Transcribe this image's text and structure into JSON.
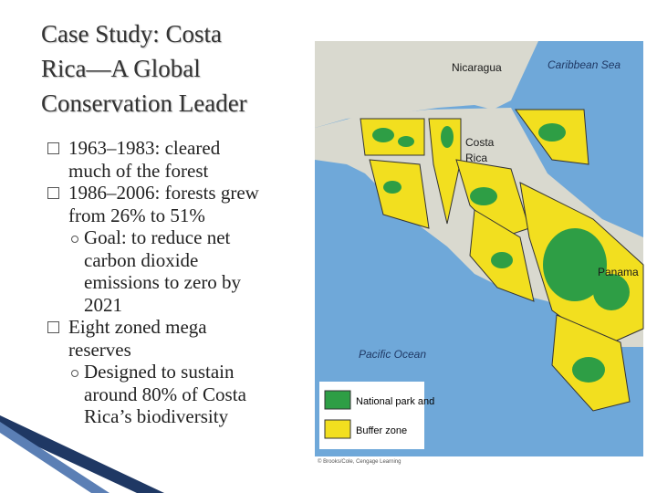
{
  "title": {
    "lines": [
      "Case Study: Costa",
      "Rica—A Global",
      "Conservation Leader"
    ]
  },
  "bullets": [
    {
      "level": 1,
      "lines": [
        "1963–1983: cleared",
        "much of the forest"
      ]
    },
    {
      "level": 1,
      "lines": [
        "1986–2006: forests grew",
        "from 26% to 51%"
      ]
    },
    {
      "level": 2,
      "lines": [
        "Goal: to reduce net",
        "carbon dioxide",
        "emissions to zero by",
        "2021"
      ]
    },
    {
      "level": 1,
      "lines": [
        "Eight zoned mega",
        "reserves"
      ]
    },
    {
      "level": 2,
      "lines": [
        "Designed to sustain",
        "around 80% of Costa",
        "Rica’s biodiversity"
      ]
    }
  ],
  "map": {
    "labels": {
      "nicaragua": "Nicaragua",
      "caribbean": "Caribbean Sea",
      "costa_rica": [
        "Costa",
        "Rica"
      ],
      "panama": "Panama",
      "pacific": "Pacific Ocean"
    },
    "legend": [
      "National park and",
      "Buffer zone"
    ],
    "credit": "© Brooks/Cole, Cengage Learning"
  }
}
